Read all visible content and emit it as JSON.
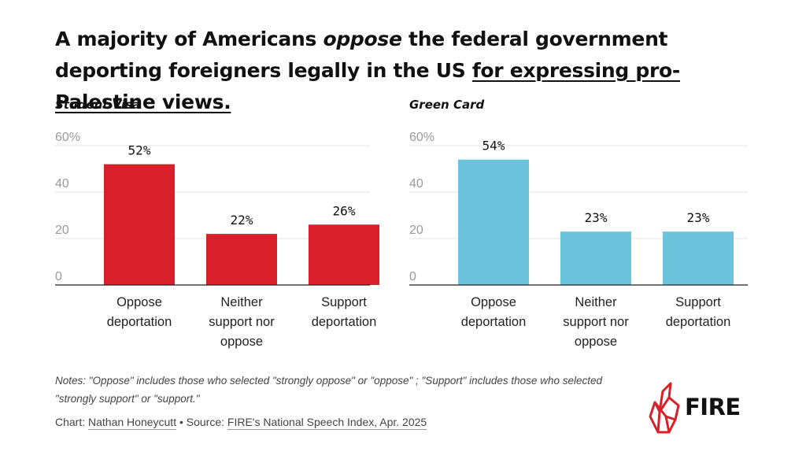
{
  "title": {
    "part1": "A majority of Americans ",
    "part2": "oppose",
    "part3": " the federal government deporting foreigners legally in the US ",
    "part4": "for expressing pro-Palestine views."
  },
  "chart_data": [
    {
      "type": "bar",
      "title": "Student Visa",
      "categories": [
        "Oppose deportation",
        "Neither support nor oppose",
        "Support deportation"
      ],
      "category_lines": [
        [
          "Oppose",
          "deportation"
        ],
        [
          "Neither",
          "support nor",
          "oppose"
        ],
        [
          "Support",
          "deportation"
        ]
      ],
      "values": [
        52,
        22,
        26
      ],
      "data_labels": [
        "52%",
        "22%",
        "26%"
      ],
      "yticks": [
        "0",
        "20",
        "40",
        "60%"
      ],
      "ylim": [
        0,
        60
      ],
      "grid": true,
      "color": "#d7202a"
    },
    {
      "type": "bar",
      "title": "Green Card",
      "categories": [
        "Oppose deportation",
        "Neither support nor oppose",
        "Support deportation"
      ],
      "category_lines": [
        [
          "Oppose",
          "deportation"
        ],
        [
          "Neither",
          "support nor",
          "oppose"
        ],
        [
          "Support",
          "deportation"
        ]
      ],
      "values": [
        54,
        23,
        23
      ],
      "data_labels": [
        "54%",
        "23%",
        "23%"
      ],
      "yticks": [
        "0",
        "20",
        "40",
        "60%"
      ],
      "ylim": [
        0,
        60
      ],
      "grid": true,
      "color": "#6bc4dc"
    }
  ],
  "notes": "Notes: \"Oppose\" includes those who selected \"strongly oppose\" or \"oppose\" ; \"Support\" includes those who selected \"strongly support\" or \"support.\"",
  "credit": {
    "prefix": "Chart: ",
    "author": "Nathan Honeycutt",
    "separator": " • Source: ",
    "source": "FIRE's National Speech Index, Apr. 2025"
  },
  "logo": {
    "text": "FIRE",
    "icon": "flame-icon",
    "color": "#d7202a"
  }
}
